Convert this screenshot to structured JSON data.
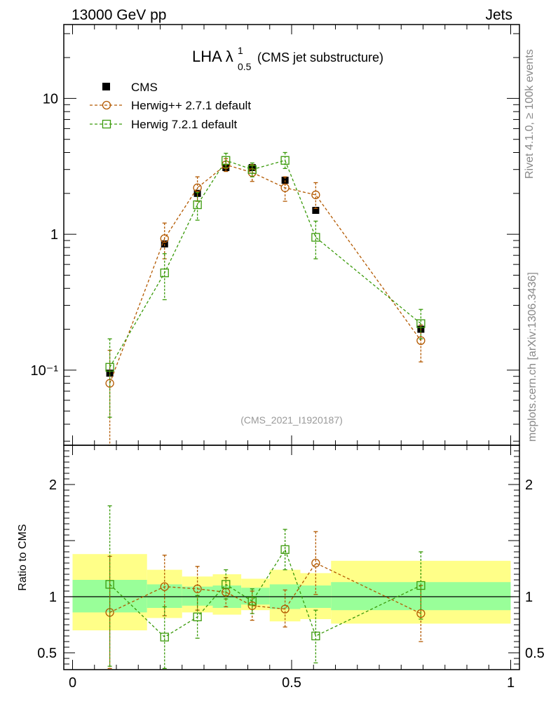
{
  "header": {
    "left_label": "13000 GeV pp",
    "right_label": "Jets"
  },
  "side_labels": {
    "rivet": "Rivet 4.1.0, ≥ 100k events",
    "mcplots": "mcplots.cern.ch [arXiv:1306.3436]"
  },
  "chart_data": [
    {
      "type": "scatter",
      "panel": "main",
      "title": "LHA λ",
      "title_superscript": "1",
      "title_subscript": "0.5",
      "subtitle": "(CMS jet substructure)",
      "analysis_tag": "(CMS_2021_I1920187)",
      "yscale": "log",
      "ylim": [
        0.028,
        35
      ],
      "xlim": [
        -0.02,
        1.02
      ],
      "y_tick_labels": [
        "10",
        "1",
        "10⁻¹"
      ],
      "x": [
        0.085,
        0.21,
        0.285,
        0.35,
        0.41,
        0.485,
        0.555,
        0.795
      ],
      "legend_position": "top-left",
      "series": [
        {
          "name": "CMS",
          "color": "#000000",
          "marker": "filled-square",
          "values": [
            0.095,
            0.85,
            2.0,
            3.1,
            3.1,
            2.5,
            1.5,
            0.2
          ]
        },
        {
          "name": "Herwig++ 2.7.1 default",
          "color": "#b35900",
          "marker": "open-circle",
          "values": [
            0.08,
            0.93,
            2.2,
            3.25,
            2.85,
            2.2,
            1.95,
            0.165
          ],
          "err_low": [
            0.052,
            0.27,
            0.45,
            0.35,
            0.4,
            0.45,
            0.4,
            0.05
          ],
          "err_high": [
            0.06,
            0.28,
            0.45,
            0.35,
            0.4,
            0.45,
            0.45,
            0.05
          ]
        },
        {
          "name": "Herwig 7.2.1 default",
          "color": "#3a9a0a",
          "marker": "open-square",
          "values": [
            0.105,
            0.52,
            1.65,
            3.5,
            3.0,
            3.5,
            0.95,
            0.22
          ],
          "err_low": [
            0.06,
            0.19,
            0.38,
            0.4,
            0.35,
            0.45,
            0.29,
            0.05
          ],
          "err_high": [
            0.065,
            0.2,
            0.38,
            0.45,
            0.35,
            0.5,
            0.3,
            0.06
          ]
        }
      ]
    },
    {
      "type": "scatter",
      "panel": "ratio",
      "ylabel": "Ratio to CMS",
      "ylim": [
        0.35,
        2.35
      ],
      "xlim": [
        -0.02,
        1.02
      ],
      "x_tick_labels": [
        "0",
        "0.5",
        "1"
      ],
      "y_tick_labels": [
        "0.5",
        "1",
        "2"
      ],
      "reference_line": 1,
      "bands": {
        "edges": [
          0.0,
          0.17,
          0.25,
          0.32,
          0.385,
          0.45,
          0.52,
          0.59,
          1.0
        ],
        "inner_low": [
          0.86,
          0.9,
          0.92,
          0.9,
          0.93,
          0.89,
          0.9,
          0.88
        ],
        "inner_high": [
          1.15,
          1.11,
          1.09,
          1.1,
          1.08,
          1.11,
          1.1,
          1.13
        ],
        "outer_low": [
          0.7,
          0.81,
          0.86,
          0.84,
          0.88,
          0.78,
          0.8,
          0.76
        ],
        "outer_high": [
          1.38,
          1.24,
          1.18,
          1.2,
          1.16,
          1.24,
          1.21,
          1.32
        ],
        "inner_color": "#99ff99",
        "outer_color": "#ffff88"
      },
      "x": [
        0.085,
        0.21,
        0.285,
        0.35,
        0.41,
        0.485,
        0.555,
        0.795
      ],
      "series": [
        {
          "name": "Herwig++ 2.7.1 default",
          "color": "#b35900",
          "marker": "open-circle",
          "values": [
            0.86,
            1.09,
            1.07,
            1.04,
            0.92,
            0.89,
            1.3,
            0.85
          ],
          "err_low": [
            0.5,
            0.26,
            0.19,
            0.13,
            0.13,
            0.16,
            0.28,
            0.25
          ],
          "err_high": [
            0.5,
            0.28,
            0.2,
            0.13,
            0.13,
            0.17,
            0.28,
            0.25
          ]
        },
        {
          "name": "Herwig 7.2.1 default",
          "color": "#3a9a0a",
          "marker": "open-square",
          "values": [
            1.11,
            0.64,
            0.82,
            1.11,
            0.96,
            1.42,
            0.65,
            1.1
          ],
          "err_low": [
            0.73,
            0.28,
            0.19,
            0.13,
            0.11,
            0.18,
            0.24,
            0.3
          ],
          "err_high": [
            0.7,
            0.27,
            0.19,
            0.13,
            0.11,
            0.18,
            0.23,
            0.3
          ]
        }
      ]
    }
  ]
}
